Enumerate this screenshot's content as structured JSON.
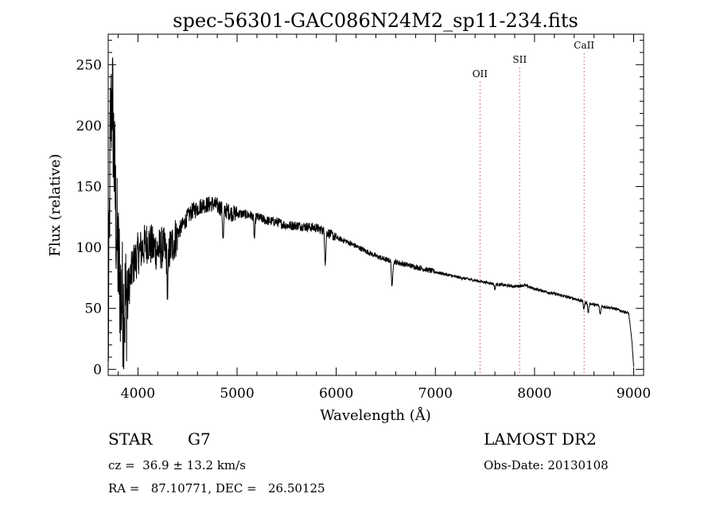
{
  "chart_data": {
    "type": "line",
    "title": "spec-56301-GAC086N24M2_sp11-234.fits",
    "xlabel": "Wavelength (Å)",
    "ylabel": "Flux (relative)",
    "xlim": [
      3700,
      9100
    ],
    "ylim": [
      -5,
      275
    ],
    "x_ticks": [
      4000,
      5000,
      6000,
      7000,
      8000,
      9000
    ],
    "y_ticks": [
      0,
      50,
      100,
      150,
      200,
      250
    ],
    "grid": false,
    "line_color": "#000000",
    "spectrum_anchors": {
      "x": [
        3700,
        3720,
        3740,
        3760,
        3780,
        3800,
        3830,
        3860,
        3900,
        3950,
        4000,
        4050,
        4100,
        4150,
        4200,
        4250,
        4300,
        4350,
        4400,
        4450,
        4500,
        4550,
        4600,
        4650,
        4700,
        4750,
        4800,
        4850,
        4900,
        4950,
        5000,
        5100,
        5200,
        5300,
        5400,
        5500,
        5600,
        5700,
        5800,
        5900,
        6000,
        6100,
        6200,
        6300,
        6400,
        6500,
        6600,
        6700,
        6800,
        6900,
        7000,
        7200,
        7400,
        7600,
        7800,
        7900,
        8000,
        8200,
        8400,
        8600,
        8800,
        8950,
        8980,
        9000
      ],
      "y": [
        5,
        190,
        230,
        170,
        120,
        90,
        60,
        50,
        65,
        85,
        95,
        100,
        105,
        100,
        98,
        100,
        95,
        103,
        112,
        118,
        125,
        130,
        132,
        135,
        135,
        136,
        134,
        132,
        130,
        128,
        128,
        127,
        125,
        122,
        121,
        118,
        118,
        117,
        116,
        113,
        108,
        105,
        101,
        97,
        93,
        90,
        88,
        86,
        84,
        82,
        80,
        76,
        73,
        70,
        68,
        69,
        66,
        62,
        58,
        53,
        50,
        46,
        25,
        2
      ]
    },
    "absorption_features": [
      {
        "x": 4300,
        "depth": 30
      },
      {
        "x": 4860,
        "depth": 25
      },
      {
        "x": 5175,
        "depth": 18
      },
      {
        "x": 5890,
        "depth": 25
      },
      {
        "x": 6563,
        "depth": 22
      },
      {
        "x": 7600,
        "depth": 4
      },
      {
        "x": 8498,
        "depth": 6
      },
      {
        "x": 8542,
        "depth": 8
      },
      {
        "x": 8662,
        "depth": 7
      }
    ],
    "line_markers": [
      {
        "label": "OII",
        "x": 7450,
        "color": "#c05050"
      },
      {
        "label": "SII",
        "x": 7850,
        "color": "#c05050"
      },
      {
        "label": "CaII",
        "x": 8500,
        "color": "#c05050"
      }
    ]
  },
  "info": {
    "object_type": "STAR",
    "subclass": "G7",
    "redshift": "cz =  36.9 ± 13.2 km/s",
    "coords": "RA =   87.10771, DEC =   26.50125",
    "survey": "LAMOST DR2",
    "obs_date": "Obs-Date: 20130108"
  }
}
